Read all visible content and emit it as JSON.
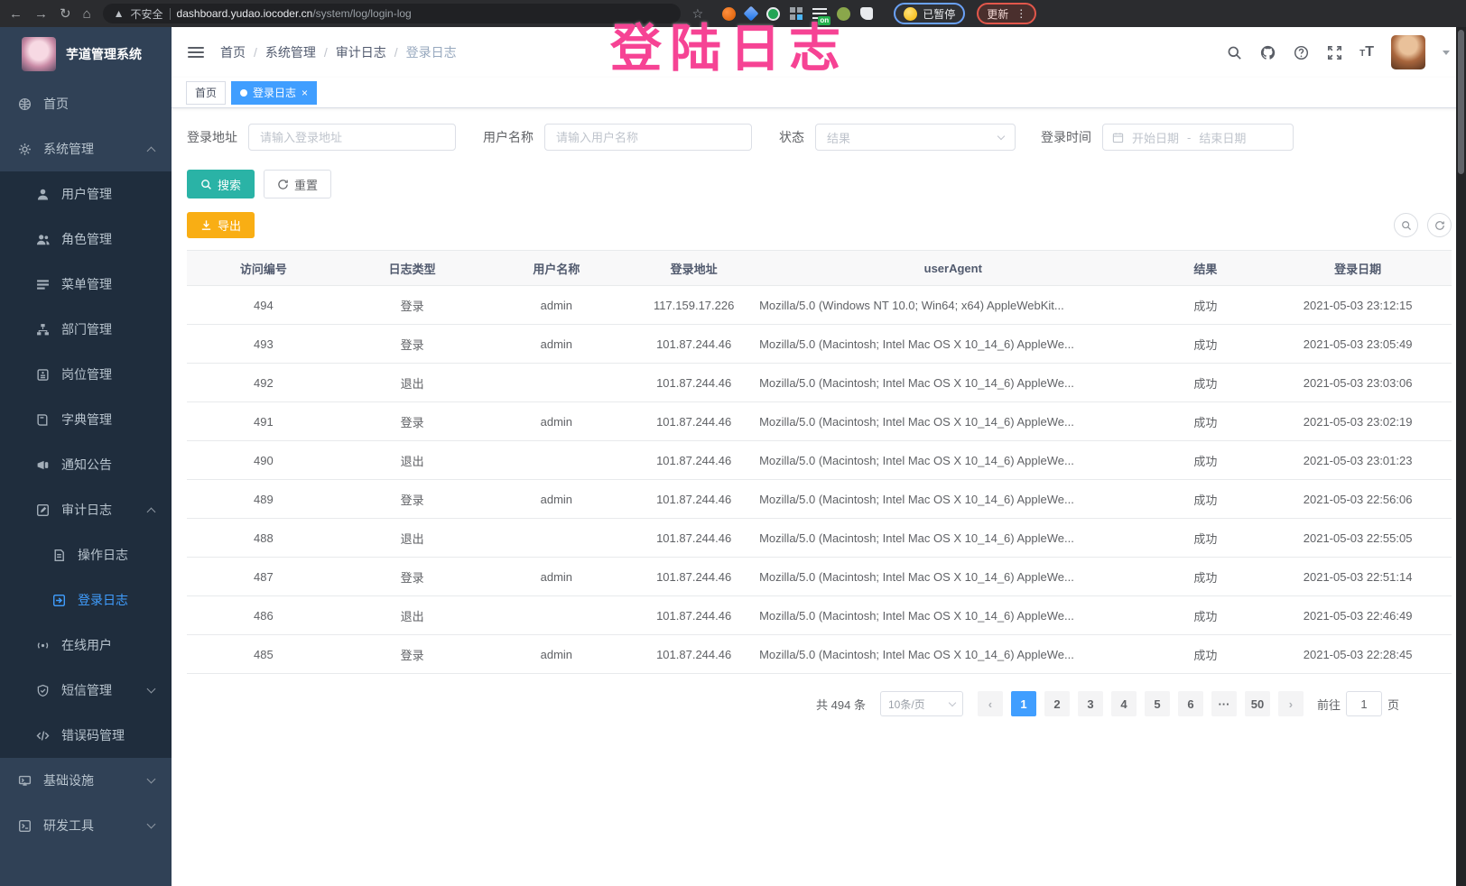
{
  "colors": {
    "accent_blue": "#409eff",
    "search_teal": "#2ab3a6",
    "export_orange": "#f9ae14",
    "annotation_pink": "#f64394",
    "sidebar_bg": "#304156",
    "submenu_bg": "#1f2d3d",
    "active_tag_bg": "#409eff"
  },
  "browser": {
    "security_label": "不安全",
    "url_domain": "dashboard.yudao.iocoder.cn",
    "url_path": "/system/log/login-log",
    "paused_badge": "已暂停",
    "update_button": "更新",
    "on_badge": "on"
  },
  "annotation": {
    "text": "登陆日志"
  },
  "sidebar": {
    "title": "芋道管理系统",
    "menu": [
      {
        "label": "首页",
        "icon": "home",
        "level": 0
      },
      {
        "label": "系统管理",
        "icon": "gear",
        "level": 0,
        "chevron": "up"
      },
      {
        "label": "用户管理",
        "icon": "user",
        "level": 1
      },
      {
        "label": "角色管理",
        "icon": "people",
        "level": 1
      },
      {
        "label": "菜单管理",
        "icon": "list",
        "level": 1
      },
      {
        "label": "部门管理",
        "icon": "tree",
        "level": 1
      },
      {
        "label": "岗位管理",
        "icon": "badge",
        "level": 1
      },
      {
        "label": "字典管理",
        "icon": "book",
        "level": 1
      },
      {
        "label": "通知公告",
        "icon": "megaphone",
        "level": 1
      },
      {
        "label": "审计日志",
        "icon": "edit",
        "level": 1,
        "chevron": "up"
      },
      {
        "label": "操作日志",
        "icon": "doc",
        "level": 2
      },
      {
        "label": "登录日志",
        "icon": "login",
        "level": 2,
        "active": true
      },
      {
        "label": "在线用户",
        "icon": "online",
        "level": 1
      },
      {
        "label": "短信管理",
        "icon": "shield",
        "level": 1,
        "chevron": "down"
      },
      {
        "label": "错误码管理",
        "icon": "code",
        "level": 1
      },
      {
        "label": "基础设施",
        "icon": "infra",
        "level": 0,
        "chevron": "down"
      },
      {
        "label": "研发工具",
        "icon": "tool",
        "level": 0,
        "chevron": "down"
      }
    ]
  },
  "header": {
    "breadcrumb": [
      "首页",
      "系统管理",
      "审计日志",
      "登录日志"
    ],
    "breadcrumb_separator": "/"
  },
  "tags": {
    "items": [
      {
        "label": "首页",
        "active": false,
        "closable": false
      },
      {
        "label": "登录日志",
        "active": true,
        "closable": true
      }
    ]
  },
  "filters": {
    "login_address_label": "登录地址",
    "login_address_placeholder": "请输入登录地址",
    "username_label": "用户名称",
    "username_placeholder": "请输入用户名称",
    "status_label": "状态",
    "status_placeholder": "结果",
    "login_time_label": "登录时间",
    "date_start_placeholder": "开始日期",
    "date_separator": "-",
    "date_end_placeholder": "结束日期"
  },
  "toolbar": {
    "search": "搜索",
    "reset": "重置",
    "export": "导出"
  },
  "table": {
    "columns": [
      "访问编号",
      "日志类型",
      "用户名称",
      "登录地址",
      "userAgent",
      "结果",
      "登录日期"
    ],
    "rows": [
      [
        "494",
        "登录",
        "admin",
        "117.159.17.226",
        "Mozilla/5.0 (Windows NT 10.0; Win64; x64) AppleWebKit...",
        "成功",
        "2021-05-03 23:12:15"
      ],
      [
        "493",
        "登录",
        "admin",
        "101.87.244.46",
        "Mozilla/5.0 (Macintosh; Intel Mac OS X 10_14_6) AppleWe...",
        "成功",
        "2021-05-03 23:05:49"
      ],
      [
        "492",
        "退出",
        "",
        "101.87.244.46",
        "Mozilla/5.0 (Macintosh; Intel Mac OS X 10_14_6) AppleWe...",
        "成功",
        "2021-05-03 23:03:06"
      ],
      [
        "491",
        "登录",
        "admin",
        "101.87.244.46",
        "Mozilla/5.0 (Macintosh; Intel Mac OS X 10_14_6) AppleWe...",
        "成功",
        "2021-05-03 23:02:19"
      ],
      [
        "490",
        "退出",
        "",
        "101.87.244.46",
        "Mozilla/5.0 (Macintosh; Intel Mac OS X 10_14_6) AppleWe...",
        "成功",
        "2021-05-03 23:01:23"
      ],
      [
        "489",
        "登录",
        "admin",
        "101.87.244.46",
        "Mozilla/5.0 (Macintosh; Intel Mac OS X 10_14_6) AppleWe...",
        "成功",
        "2021-05-03 22:56:06"
      ],
      [
        "488",
        "退出",
        "",
        "101.87.244.46",
        "Mozilla/5.0 (Macintosh; Intel Mac OS X 10_14_6) AppleWe...",
        "成功",
        "2021-05-03 22:55:05"
      ],
      [
        "487",
        "登录",
        "admin",
        "101.87.244.46",
        "Mozilla/5.0 (Macintosh; Intel Mac OS X 10_14_6) AppleWe...",
        "成功",
        "2021-05-03 22:51:14"
      ],
      [
        "486",
        "退出",
        "",
        "101.87.244.46",
        "Mozilla/5.0 (Macintosh; Intel Mac OS X 10_14_6) AppleWe...",
        "成功",
        "2021-05-03 22:46:49"
      ],
      [
        "485",
        "登录",
        "admin",
        "101.87.244.46",
        "Mozilla/5.0 (Macintosh; Intel Mac OS X 10_14_6) AppleWe...",
        "成功",
        "2021-05-03 22:28:45"
      ]
    ]
  },
  "pagination": {
    "total": "共 494 条",
    "page_size": "10条/页",
    "pages": [
      "1",
      "2",
      "3",
      "4",
      "5",
      "6",
      "···",
      "50"
    ],
    "active_page": "1",
    "prev_icon": "‹",
    "next_icon": "›",
    "goto_label": "前往",
    "goto_value": "1",
    "page_unit": "页"
  }
}
